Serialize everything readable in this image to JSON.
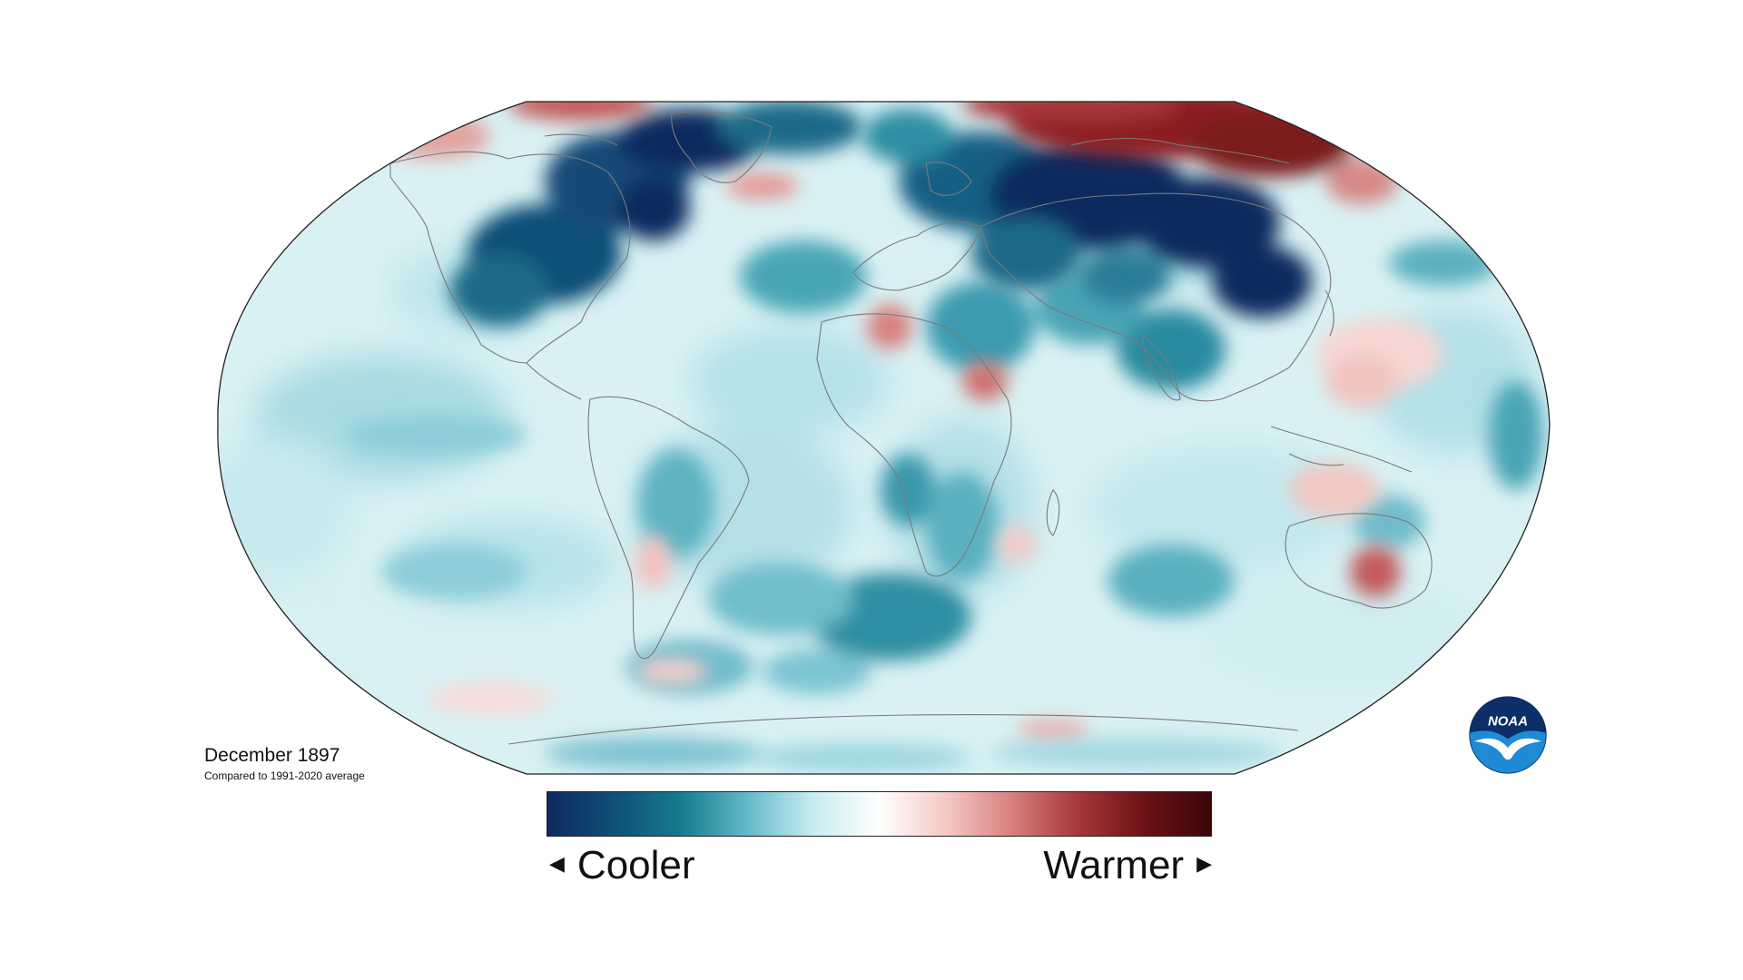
{
  "map": {
    "title": "December 1897",
    "subtitle": "Compared to 1991-2020 average",
    "projection": "Robinson",
    "variable": "temperature anomaly"
  },
  "legend": {
    "left_label": "Cooler",
    "right_label": "Warmer",
    "left_arrow_icon": "triangle-left-icon",
    "right_arrow_icon": "triangle-right-icon",
    "color_stops": [
      "#0e2a5e",
      "#0f4f77",
      "#167b8c",
      "#62b8c8",
      "#c8ecf0",
      "#ffffff",
      "#f4c9c5",
      "#d7807e",
      "#a8363a",
      "#6a1216",
      "#3b0608"
    ]
  },
  "logo": {
    "name": "noaa-logo",
    "text": "NOAA",
    "colors": {
      "top": "#0b2f66",
      "bottom": "#1f8ad6",
      "bird": "#ffffff"
    }
  },
  "colors": {
    "deep_cold": "#0e2a5e",
    "cold": "#167b8c",
    "light_cold": "#bfe7ee",
    "neutral": "#ffffff",
    "light_warm": "#f4c9c5",
    "warm": "#c25a5a",
    "deep_warm": "#7a1a1c",
    "coastline": "#7a7a7a",
    "map_outline": "#222222"
  }
}
